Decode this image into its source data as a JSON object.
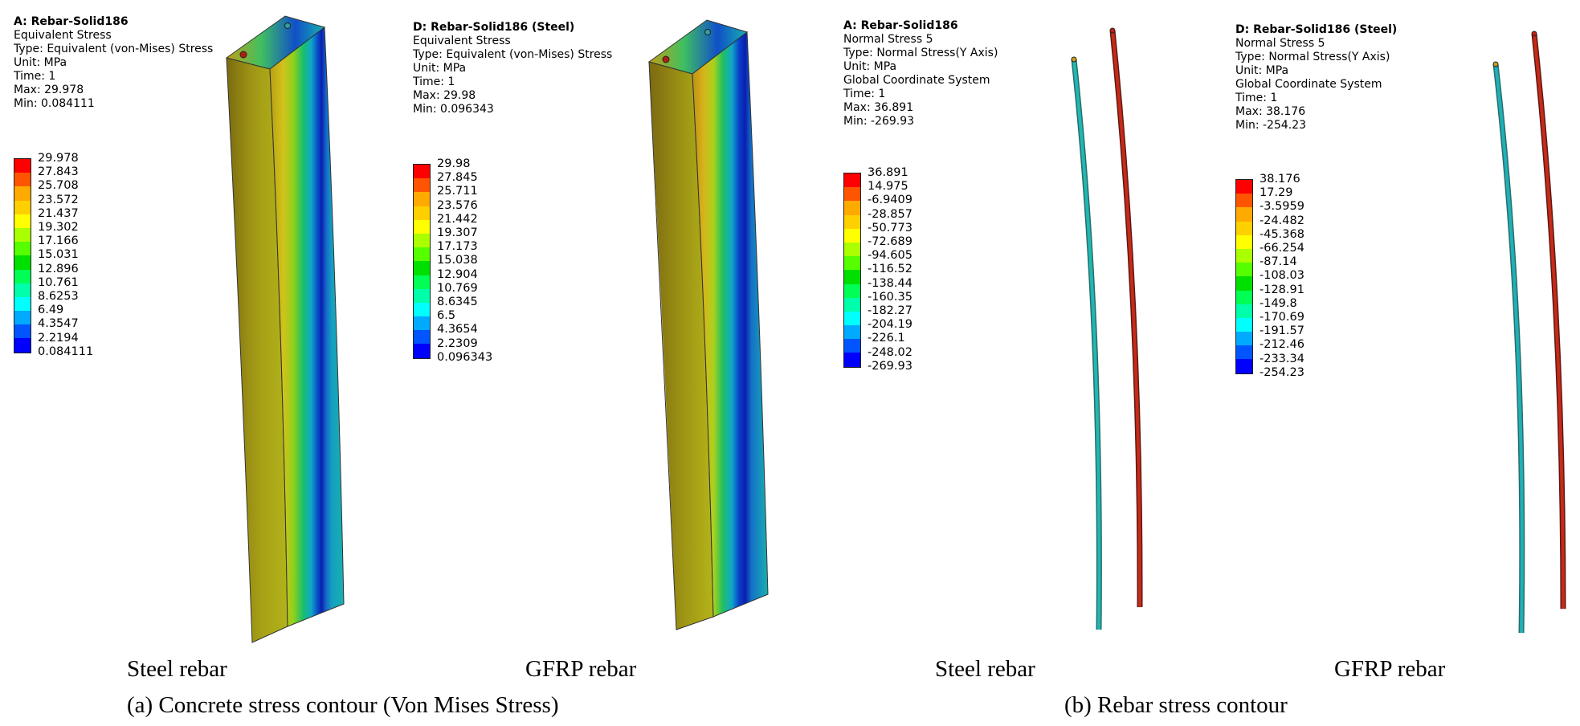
{
  "panels": [
    {
      "header": [
        "A: Rebar-Solid186",
        "Equivalent Stress",
        "Type: Equivalent (von-Mises) Stress",
        "Unit: MPa",
        "Time: 1",
        "Max: 29.978",
        "Min: 0.084111"
      ],
      "legend": [
        "29.978",
        "27.843",
        "25.708",
        "23.572",
        "21.437",
        "19.302",
        "17.166",
        "15.031",
        "12.896",
        "10.761",
        "8.6253",
        "6.49",
        "4.3547",
        "2.2194",
        "0.084111"
      ]
    },
    {
      "header": [
        "D: Rebar-Solid186 (Steel)",
        "Equivalent Stress",
        "Type: Equivalent (von-Mises) Stress",
        "Unit: MPa",
        "Time: 1",
        "Max: 29.98",
        "Min: 0.096343"
      ],
      "legend": [
        "29.98",
        "27.845",
        "25.711",
        "23.576",
        "21.442",
        "19.307",
        "17.173",
        "15.038",
        "12.904",
        "10.769",
        "8.6345",
        "6.5",
        "4.3654",
        "2.2309",
        "0.096343"
      ]
    },
    {
      "header": [
        "A: Rebar-Solid186",
        "Normal Stress 5",
        "Type: Normal Stress(Y Axis)",
        "Unit: MPa",
        "Global Coordinate System",
        "Time: 1",
        "Max: 36.891",
        "Min: -269.93"
      ],
      "legend": [
        "36.891",
        "14.975",
        "-6.9409",
        "-28.857",
        "-50.773",
        "-72.689",
        "-94.605",
        "-116.52",
        "-138.44",
        "-160.35",
        "-182.27",
        "-204.19",
        "-226.1",
        "-248.02",
        "-269.93"
      ]
    },
    {
      "header": [
        "D: Rebar-Solid186 (Steel)",
        "Normal Stress 5",
        "Type: Normal Stress(Y Axis)",
        "Unit: MPa",
        "Global Coordinate System",
        "Time: 1",
        "Max: 38.176",
        "Min: -254.23"
      ],
      "legend": [
        "38.176",
        "17.29",
        "-3.5959",
        "-24.482",
        "-45.368",
        "-66.254",
        "-87.14",
        "-108.03",
        "-128.91",
        "-149.8",
        "-170.69",
        "-191.57",
        "-212.46",
        "-233.34",
        "-254.23"
      ]
    }
  ],
  "contour_colors": [
    "#ff0000",
    "#ff5500",
    "#ffaa00",
    "#ffd000",
    "#ffff00",
    "#aaff00",
    "#55ff00",
    "#00e000",
    "#00ff55",
    "#00ffaa",
    "#00ffff",
    "#00aaff",
    "#0055ff",
    "#0000ff"
  ],
  "captions": {
    "steel_a": "Steel rebar",
    "gfrp_a": "GFRP rebar",
    "steel_b": "Steel rebar",
    "gfrp_b": "GFRP rebar",
    "title_a": "(a) Concrete stress contour (Von Mises Stress)",
    "title_b": "(b) Rebar stress contour"
  }
}
